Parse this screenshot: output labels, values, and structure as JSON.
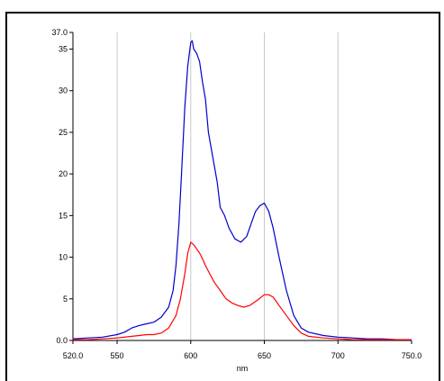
{
  "chart_data": {
    "type": "line",
    "title": "",
    "xlabel": "nm",
    "ylabel": "",
    "xlim": [
      520.0,
      750.0
    ],
    "ylim": [
      0.0,
      37.0
    ],
    "x_ticks": [
      520,
      550,
      600,
      650,
      700,
      750
    ],
    "x_tick_labels": [
      "520.0",
      "550",
      "600",
      "650",
      "700",
      "750.0"
    ],
    "y_ticks": [
      0,
      5,
      10,
      15,
      20,
      25,
      30,
      35,
      37
    ],
    "y_tick_labels": [
      "0.0",
      "5",
      "10",
      "15",
      "20",
      "25",
      "30",
      "35",
      "37.0"
    ],
    "x_grid": [
      550,
      600,
      650,
      700
    ],
    "grid": true,
    "legend": "none",
    "series": [
      {
        "color": "#0000cc",
        "x": [
          520,
          530,
          540,
          550,
          555,
          560,
          565,
          570,
          575,
          580,
          585,
          588,
          590,
          592,
          594,
          596,
          598,
          600,
          601,
          602,
          604,
          606,
          608,
          610,
          612,
          615,
          618,
          620,
          623,
          626,
          630,
          634,
          638,
          641,
          644,
          647,
          650,
          653,
          656,
          660,
          665,
          670,
          675,
          680,
          690,
          700,
          710,
          720,
          730,
          740,
          750
        ],
        "y": [
          0.2,
          0.3,
          0.4,
          0.7,
          1.0,
          1.5,
          1.8,
          2.0,
          2.2,
          2.8,
          4.0,
          6.0,
          9.0,
          14.0,
          21.0,
          28.0,
          33.0,
          35.8,
          36.0,
          35.0,
          34.5,
          33.5,
          31.0,
          29.0,
          25.0,
          22.0,
          19.0,
          16.0,
          15.0,
          13.5,
          12.2,
          11.8,
          12.5,
          14.0,
          15.5,
          16.2,
          16.5,
          15.5,
          13.5,
          10.0,
          6.0,
          3.0,
          1.5,
          1.0,
          0.6,
          0.4,
          0.3,
          0.2,
          0.2,
          0.1,
          0.1
        ]
      },
      {
        "color": "#ff0000",
        "x": [
          520,
          530,
          540,
          550,
          560,
          565,
          570,
          575,
          580,
          585,
          590,
          593,
          596,
          598,
          600,
          602,
          604,
          606,
          608,
          610,
          613,
          616,
          620,
          624,
          628,
          632,
          636,
          640,
          645,
          650,
          653,
          656,
          660,
          665,
          670,
          675,
          680,
          690,
          700,
          710,
          720,
          730,
          740,
          750
        ],
        "y": [
          0.1,
          0.1,
          0.2,
          0.3,
          0.5,
          0.6,
          0.7,
          0.7,
          0.9,
          1.5,
          3.0,
          5.0,
          8.0,
          10.5,
          11.8,
          11.5,
          11.0,
          10.5,
          9.8,
          9.0,
          8.0,
          7.0,
          6.0,
          5.0,
          4.5,
          4.2,
          4.0,
          4.2,
          4.8,
          5.5,
          5.5,
          5.2,
          4.2,
          3.0,
          1.8,
          0.9,
          0.5,
          0.3,
          0.2,
          0.1,
          0.1,
          0.1,
          0.1,
          0.1
        ]
      }
    ]
  }
}
